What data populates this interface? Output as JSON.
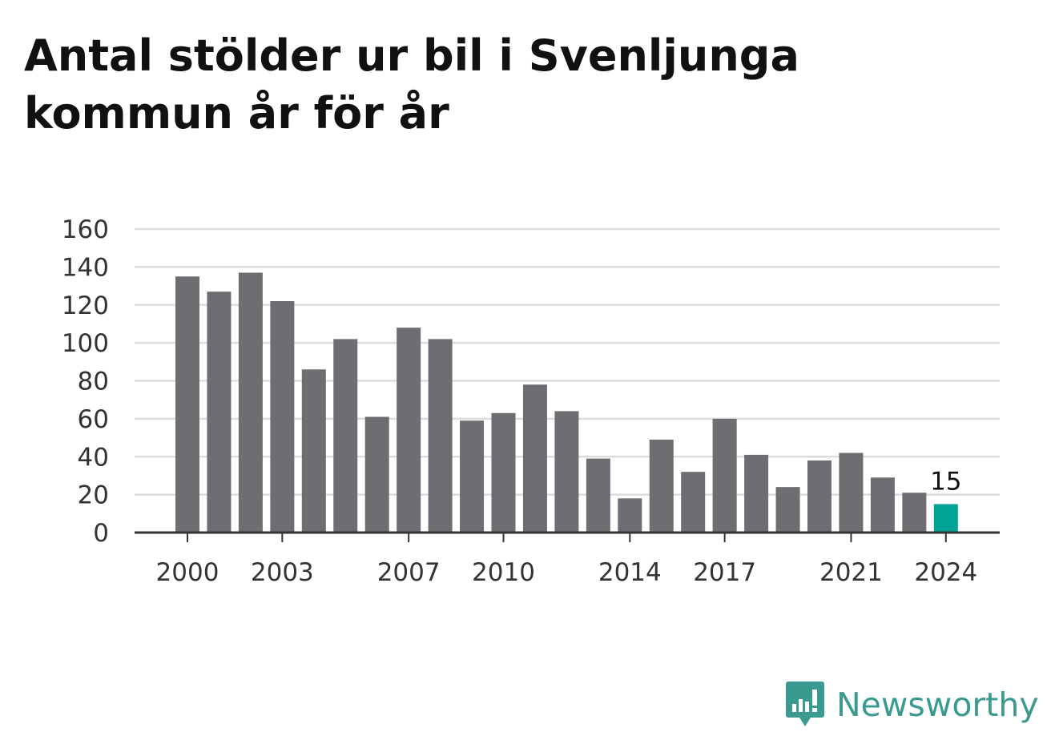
{
  "title": "Antal stölder ur bil i Svenljunga kommun år för år",
  "brand": {
    "name": "Newsworthy",
    "logo_icon": "newsworthy-bar-chart-speech-bubble-icon",
    "color": "#3b9a8f"
  },
  "colors": {
    "bar": "#6e6d72",
    "highlight": "#00a396",
    "grid": "#dddddd",
    "axis": "#333333"
  },
  "chart_data": {
    "type": "bar",
    "categories": [
      "2000",
      "2001",
      "2002",
      "2003",
      "2004",
      "2005",
      "2006",
      "2007",
      "2008",
      "2009",
      "2010",
      "2011",
      "2012",
      "2013",
      "2014",
      "2015",
      "2016",
      "2017",
      "2018",
      "2019",
      "2020",
      "2021",
      "2022",
      "2023",
      "2024"
    ],
    "values": [
      135,
      127,
      137,
      122,
      86,
      102,
      61,
      108,
      102,
      59,
      63,
      78,
      64,
      39,
      18,
      49,
      32,
      60,
      41,
      24,
      38,
      42,
      29,
      21,
      15
    ],
    "highlight_index": 24,
    "data_labels": [
      {
        "category": "2024",
        "text": "15"
      }
    ],
    "x_tick_labels": [
      "2000",
      "2003",
      "2007",
      "2010",
      "2014",
      "2017",
      "2021",
      "2024"
    ],
    "y_ticks": [
      0,
      20,
      40,
      60,
      80,
      100,
      120,
      140,
      160
    ],
    "ylim": [
      0,
      160
    ],
    "grid": true,
    "legend": "none",
    "xlabel": "",
    "ylabel": ""
  }
}
